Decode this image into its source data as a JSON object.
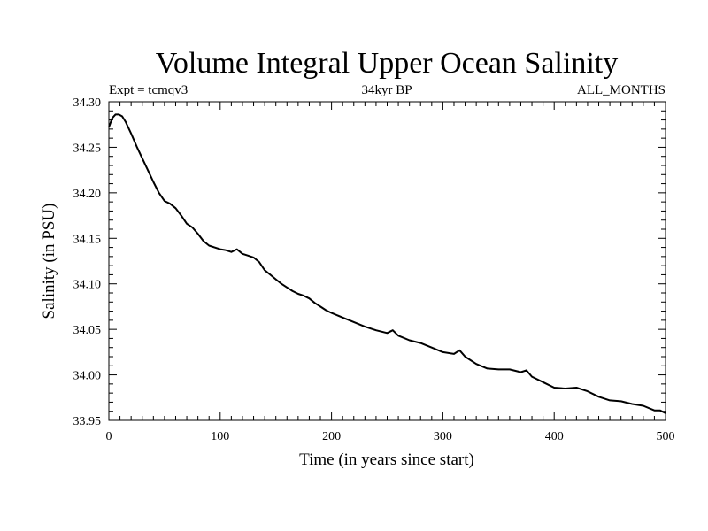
{
  "chart_data": {
    "type": "line",
    "title": "Volume Integral Upper Ocean Salinity",
    "subtitle_left": "Expt = tcmqv3",
    "subtitle_center": "34kyr BP",
    "subtitle_right": "ALL_MONTHS",
    "xlabel": "Time (in years since start)",
    "ylabel": "Salinity (in PSU)",
    "xlim": [
      0,
      500
    ],
    "ylim": [
      33.95,
      34.3
    ],
    "xticks": [
      0,
      100,
      200,
      300,
      400,
      500
    ],
    "yticks": [
      "33.95",
      "34.00",
      "34.05",
      "34.10",
      "34.15",
      "34.20",
      "34.25",
      "34.30"
    ],
    "grid": false,
    "series": [
      {
        "x": [
          0,
          3,
          6,
          9,
          12,
          15,
          20,
          25,
          30,
          35,
          40,
          45,
          50,
          55,
          60,
          65,
          70,
          75,
          80,
          85,
          90,
          95,
          100,
          105,
          110,
          115,
          120,
          125,
          130,
          135,
          140,
          145,
          150,
          155,
          160,
          165,
          170,
          175,
          180,
          185,
          190,
          195,
          200,
          210,
          220,
          230,
          240,
          250,
          255,
          260,
          270,
          280,
          290,
          300,
          310,
          315,
          320,
          330,
          340,
          350,
          360,
          370,
          375,
          380,
          390,
          400,
          410,
          420,
          430,
          440,
          450,
          460,
          470,
          480,
          490,
          495,
          500
        ],
        "y": [
          34.272,
          34.282,
          34.286,
          34.286,
          34.284,
          34.278,
          34.265,
          34.251,
          34.238,
          34.225,
          34.212,
          34.2,
          34.191,
          34.188,
          34.183,
          34.175,
          34.166,
          34.162,
          34.155,
          34.147,
          34.142,
          34.14,
          34.138,
          34.137,
          34.135,
          34.138,
          34.133,
          34.131,
          34.129,
          34.124,
          34.115,
          34.11,
          34.105,
          34.1,
          34.096,
          34.092,
          34.089,
          34.087,
          34.084,
          34.079,
          34.075,
          34.071,
          34.068,
          34.063,
          34.058,
          34.053,
          34.049,
          34.046,
          34.049,
          34.043,
          34.038,
          34.035,
          34.03,
          34.025,
          34.023,
          34.027,
          34.02,
          34.012,
          34.007,
          34.006,
          34.006,
          34.003,
          34.005,
          33.998,
          33.992,
          33.986,
          33.985,
          33.986,
          33.982,
          33.976,
          33.972,
          33.971,
          33.968,
          33.966,
          33.961,
          33.961,
          33.958
        ]
      }
    ]
  }
}
